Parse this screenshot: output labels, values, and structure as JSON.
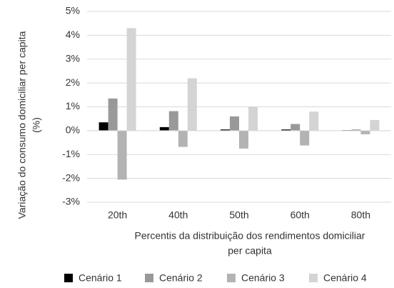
{
  "chart_data": {
    "type": "bar",
    "ylabel": [
      "Variação do consumo domiciliar per capita",
      "(%)"
    ],
    "xlabel": [
      "Percentis da distribuição dos rendimentos domiciliar",
      "per capita"
    ],
    "categories": [
      "20th",
      "40th",
      "50th",
      "60th",
      "80th"
    ],
    "series": [
      {
        "name": "Cenário 1",
        "color": "#000000",
        "values": [
          0.35,
          0.15,
          0.05,
          0.05,
          0.02
        ]
      },
      {
        "name": "Cenário 2",
        "color": "#999999",
        "values": [
          1.35,
          0.82,
          0.6,
          0.28,
          0.05
        ]
      },
      {
        "name": "Cenário 3",
        "color": "#b3b3b3",
        "values": [
          -2.05,
          -0.68,
          -0.75,
          -0.62,
          -0.15
        ]
      },
      {
        "name": "Cenário 4",
        "color": "#d4d4d4",
        "values": [
          4.3,
          2.2,
          1.0,
          0.8,
          0.45
        ]
      }
    ],
    "ylim": [
      -3,
      5
    ],
    "yticks": [
      {
        "value": -3,
        "label": "-3%"
      },
      {
        "value": -2,
        "label": "-2%"
      },
      {
        "value": -1,
        "label": "-1%"
      },
      {
        "value": 0,
        "label": "0%"
      },
      {
        "value": 1,
        "label": "1%"
      },
      {
        "value": 2,
        "label": "2%"
      },
      {
        "value": 3,
        "label": "3%"
      },
      {
        "value": 4,
        "label": "4%"
      },
      {
        "value": 5,
        "label": "5%"
      }
    ],
    "grid": true,
    "legend": "bottom"
  }
}
